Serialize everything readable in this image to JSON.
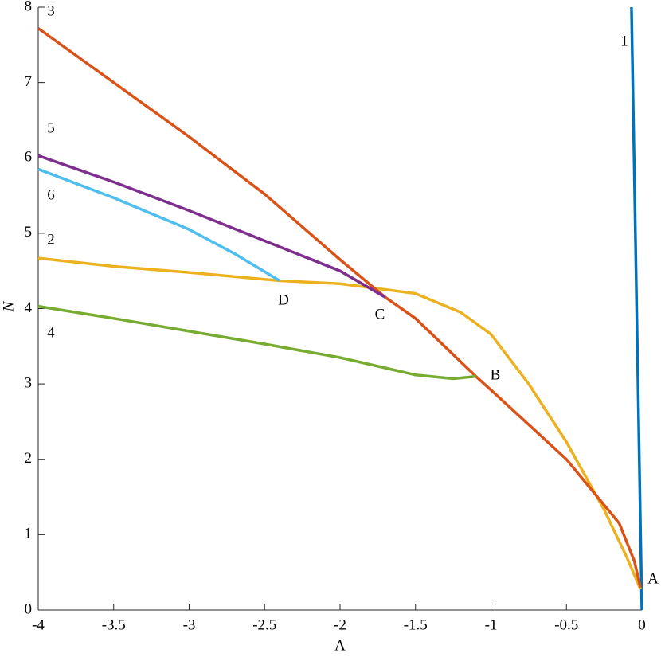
{
  "chart_data": {
    "type": "line",
    "xlabel": "Λ",
    "ylabel": "N",
    "xlim": [
      -4,
      0
    ],
    "ylim": [
      0,
      8
    ],
    "xticks": [
      -4,
      -3.5,
      -3,
      -2.5,
      -2,
      -1.5,
      -1,
      -0.5,
      0
    ],
    "yticks": [
      0,
      1,
      2,
      3,
      4,
      5,
      6,
      7,
      8
    ],
    "series": [
      {
        "name": "1",
        "color": "#0072BD",
        "x": [
          -0.069,
          0
        ],
        "values": [
          8,
          0
        ]
      },
      {
        "name": "2",
        "color": "#EDB120",
        "x": [
          -4,
          -3.5,
          -3,
          -2.4,
          -2,
          -1.5,
          -1.2,
          -1,
          -0.75,
          -0.5,
          -0.25,
          -0.1,
          -0.01
        ],
        "values": [
          4.67,
          4.56,
          4.48,
          4.37,
          4.33,
          4.2,
          3.95,
          3.66,
          3.0,
          2.23,
          1.33,
          0.7,
          0.28
        ]
      },
      {
        "name": "3",
        "color": "#D95319",
        "x": [
          -4,
          -3.5,
          -3,
          -2.5,
          -2,
          -1.7,
          -1.5,
          -1.1,
          -1,
          -0.5,
          -0.15,
          -0.05,
          -0.01
        ],
        "values": [
          7.72,
          7.0,
          6.28,
          5.52,
          4.65,
          4.15,
          3.87,
          3.1,
          2.92,
          2.0,
          1.15,
          0.65,
          0.3
        ]
      },
      {
        "name": "4",
        "color": "#77AC30",
        "x": [
          -4,
          -3.5,
          -3,
          -2.5,
          -2,
          -1.5,
          -1.25,
          -1.1
        ],
        "values": [
          4.03,
          3.87,
          3.7,
          3.53,
          3.35,
          3.12,
          3.07,
          3.1
        ]
      },
      {
        "name": "5",
        "color": "#7E2F8E",
        "x": [
          -4,
          -3.5,
          -3,
          -2.5,
          -2,
          -1.7
        ],
        "values": [
          6.03,
          5.68,
          5.3,
          4.9,
          4.5,
          4.15
        ]
      },
      {
        "name": "6",
        "color": "#4DBEEE",
        "x": [
          -4,
          -3.5,
          -3,
          -2.7,
          -2.4
        ],
        "values": [
          5.85,
          5.47,
          5.05,
          4.73,
          4.37
        ]
      }
    ],
    "annotations": [
      "A",
      "B",
      "C",
      "D"
    ]
  }
}
